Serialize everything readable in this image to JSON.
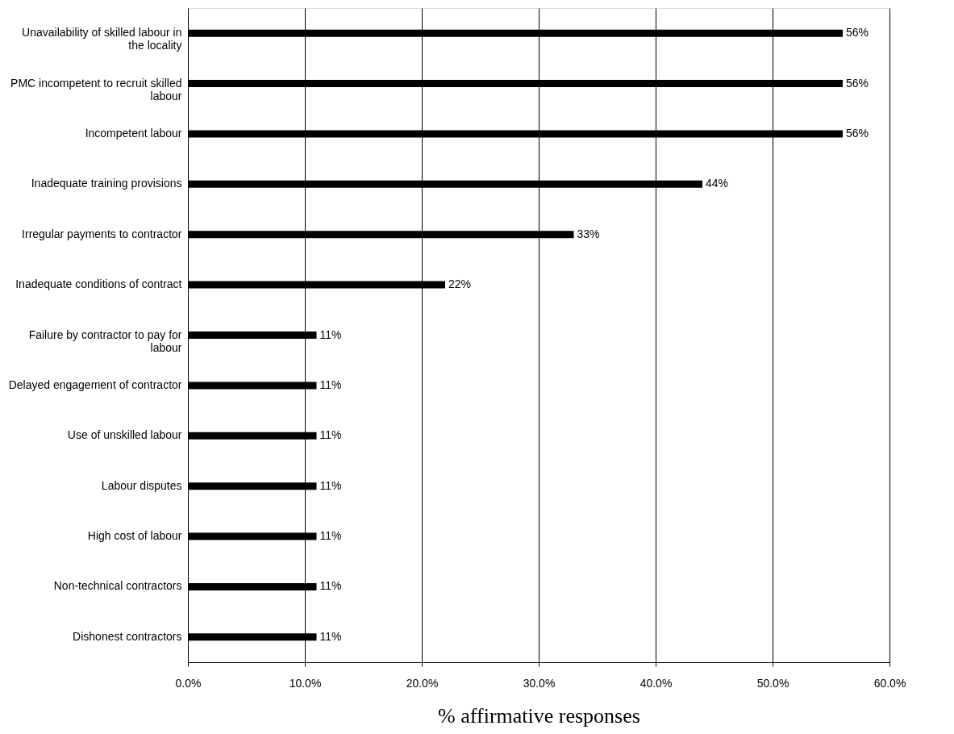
{
  "chart_data": {
    "type": "bar",
    "orientation": "horizontal",
    "xlabel": "% affirmative responses",
    "categories": [
      "Unavailability of skilled labour in the locality",
      "PMC incompetent to recruit skilled labour",
      "Incompetent labour",
      "Inadequate training provisions",
      "Irregular payments to contractor",
      "Inadequate conditions of contract",
      "Failure by contractor to pay for labour",
      "Delayed engagement of contractor",
      "Use of unskilled labour",
      "Labour disputes",
      "High cost of labour",
      "Non-technical contractors",
      "Dishonest contractors"
    ],
    "values": [
      56,
      56,
      56,
      44,
      33,
      22,
      11,
      11,
      11,
      11,
      11,
      11,
      11
    ],
    "value_labels": [
      "56%",
      "56%",
      "56%",
      "44%",
      "33%",
      "22%",
      "11%",
      "11%",
      "11%",
      "11%",
      "11%",
      "11%",
      "11%"
    ],
    "color": "#000000",
    "xlim": [
      0,
      60
    ],
    "xticks": [
      {
        "value": 0,
        "label": "0.0%"
      },
      {
        "value": 10,
        "label": "10.0%"
      },
      {
        "value": 20,
        "label": "20.0%"
      },
      {
        "value": 30,
        "label": "30.0%"
      },
      {
        "value": 40,
        "label": "40.0%"
      },
      {
        "value": 50,
        "label": "50.0%"
      },
      {
        "value": 60,
        "label": "60.0%"
      }
    ],
    "grid": "x"
  }
}
